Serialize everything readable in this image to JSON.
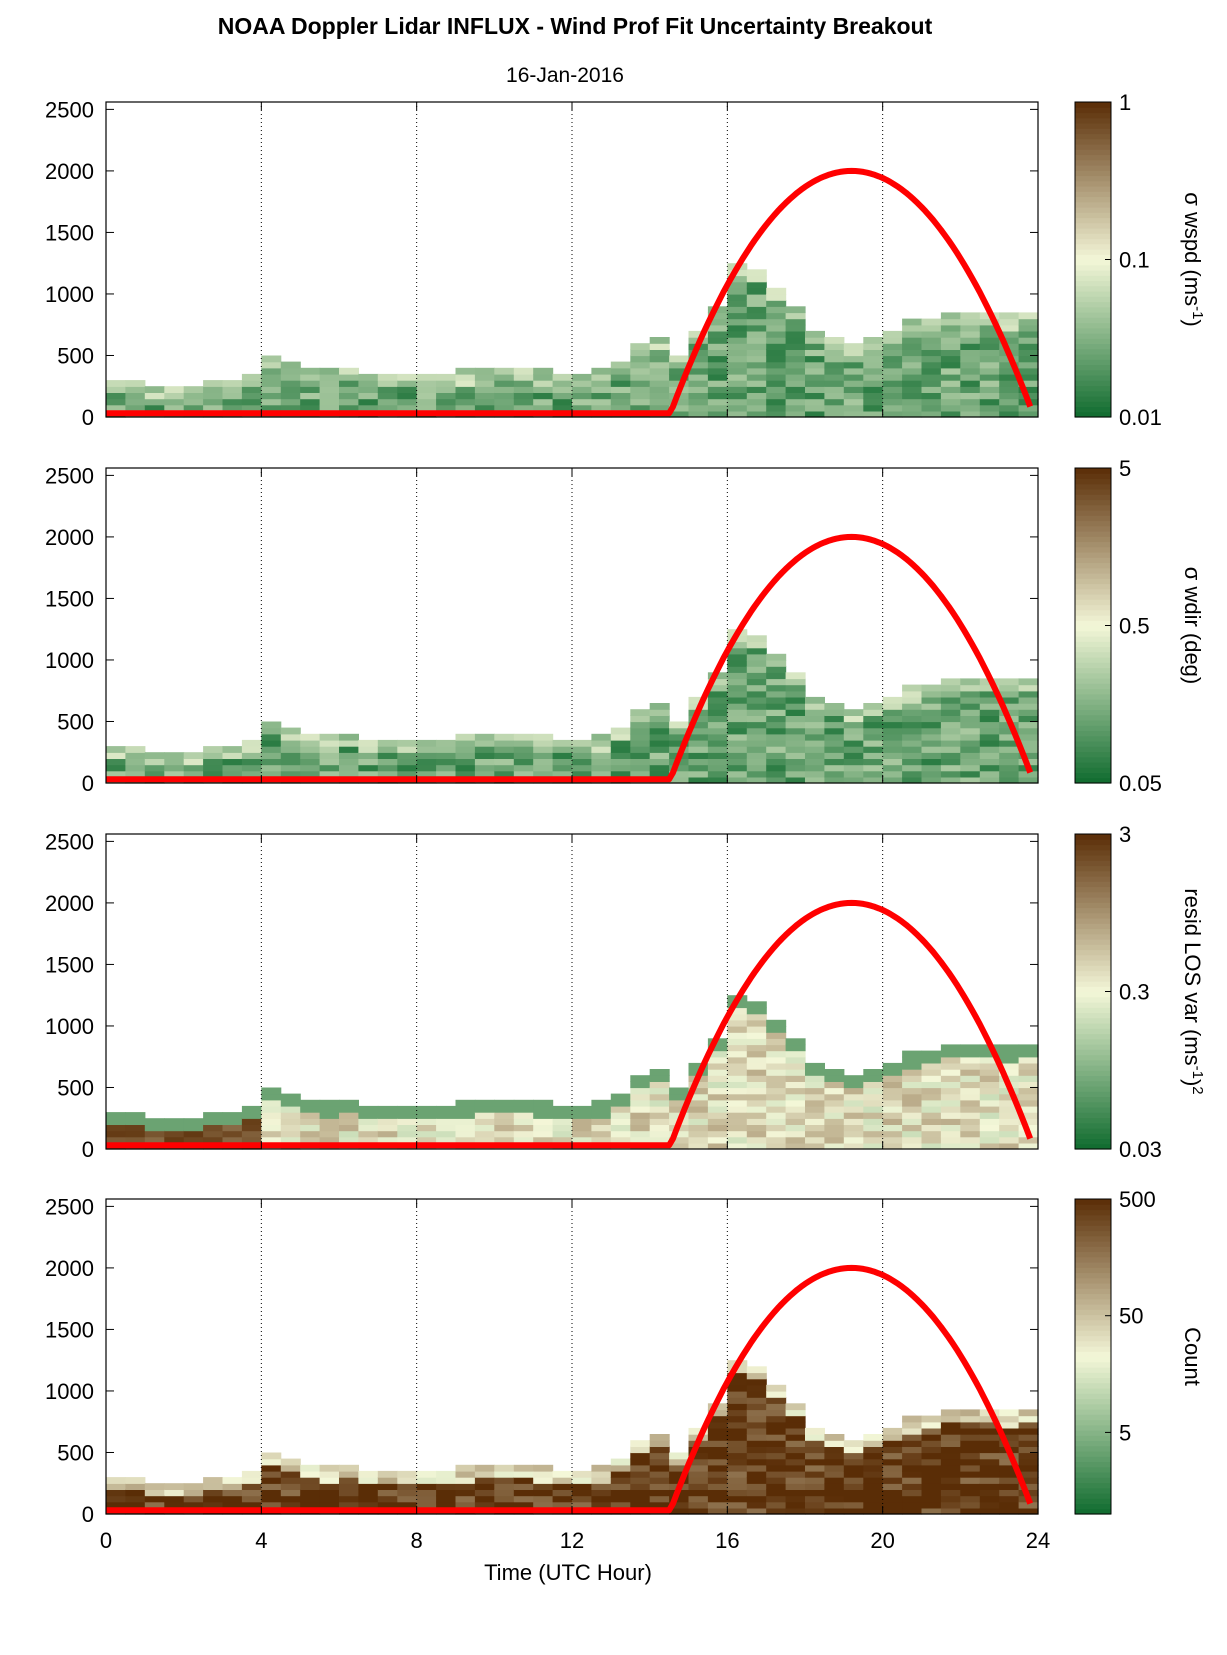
{
  "figure": {
    "title": "NOAA Doppler Lidar INFLUX - Wind Prof Fit Uncertainty Breakout",
    "date": "16-Jan-2016",
    "xlabel": "Time (UTC Hour)"
  },
  "chart_data": [
    {
      "type": "heatmap",
      "panel": "wspd",
      "colorbar_label": "σ wspd (ms",
      "colorbar_label_sup": "-1",
      "colorbar_label_end": ")",
      "colorbar_ticks": [
        "1",
        "0.1",
        "0.01"
      ],
      "colorbar_tick_values": [
        1,
        0.1,
        0.01
      ],
      "clim": [
        0.01,
        1
      ],
      "colormap": "green-white-brown (log)",
      "grid": "vertical dotted",
      "xlim": [
        0,
        24
      ],
      "ylim": [
        0,
        2560
      ],
      "yticks": [
        "2500",
        "2000",
        "1500",
        "1000",
        "500",
        "0"
      ],
      "ytick_values": [
        2500,
        2000,
        1500,
        1000,
        500,
        0
      ],
      "dominant_level": 0.2
    },
    {
      "type": "heatmap",
      "panel": "wdir",
      "colorbar_label": "σ wdir (deg)",
      "colorbar_ticks": [
        "5",
        "0.5",
        "0.05"
      ],
      "colorbar_tick_values": [
        5,
        0.5,
        0.05
      ],
      "clim": [
        0.05,
        5
      ],
      "colormap": "green-white-brown (log)",
      "grid": "vertical dotted",
      "xlim": [
        0,
        24
      ],
      "ylim": [
        0,
        2560
      ],
      "yticks": [
        "2500",
        "2000",
        "1500",
        "1000",
        "500",
        "0"
      ],
      "ytick_values": [
        2500,
        2000,
        1500,
        1000,
        500,
        0
      ],
      "dominant_level": 0.2
    },
    {
      "type": "heatmap",
      "panel": "resid",
      "colorbar_label": "resid LOS var (ms",
      "colorbar_label_sup": "-1",
      "colorbar_label_end": ")",
      "colorbar_label_sup2": "2",
      "colorbar_ticks": [
        "3",
        "0.3",
        "0.03"
      ],
      "colorbar_tick_values": [
        3,
        0.3,
        0.03
      ],
      "clim": [
        0.03,
        3
      ],
      "colormap": "green-white-brown (log)",
      "grid": "vertical dotted",
      "xlim": [
        0,
        24
      ],
      "ylim": [
        0,
        2560
      ],
      "yticks": [
        "2500",
        "2000",
        "1500",
        "1000",
        "500",
        "0"
      ],
      "ytick_values": [
        2500,
        2000,
        1500,
        1000,
        500,
        0
      ],
      "dominant_level": 0.55
    },
    {
      "type": "heatmap",
      "panel": "count",
      "colorbar_label": "Count",
      "colorbar_ticks": [
        "500",
        "50",
        "5"
      ],
      "colorbar_tick_values": [
        500,
        50,
        5
      ],
      "clim": [
        1,
        500
      ],
      "colormap": "green-white-brown (log)",
      "grid": "vertical dotted",
      "xlim": [
        0,
        24
      ],
      "ylim": [
        0,
        2560
      ],
      "yticks": [
        "2500",
        "2000",
        "1500",
        "1000",
        "500",
        "0"
      ],
      "ytick_values": [
        2500,
        2000,
        1500,
        1000,
        500,
        0
      ],
      "xticks": [
        "0",
        "4",
        "8",
        "12",
        "16",
        "20",
        "24"
      ],
      "xtick_values": [
        0,
        4,
        8,
        12,
        16,
        20,
        24
      ],
      "dominant_level": 0.97
    }
  ],
  "data_top_profile": {
    "time_hours": [
      0,
      0.5,
      1,
      1.5,
      2,
      2.5,
      3,
      3.5,
      4,
      4.5,
      5,
      5.5,
      6,
      6.5,
      7,
      7.5,
      8,
      8.5,
      9,
      9.5,
      10,
      10.5,
      11,
      11.5,
      12,
      12.5,
      13,
      13.5,
      14,
      14.5,
      15,
      15.5,
      16,
      16.5,
      17,
      17.5,
      18,
      18.5,
      19,
      19.5,
      20,
      20.5,
      21,
      21.5,
      22,
      22.5,
      23,
      23.5
    ],
    "top_height_m": [
      300,
      280,
      220,
      240,
      250,
      270,
      300,
      350,
      480,
      420,
      380,
      360,
      370,
      350,
      340,
      330,
      320,
      330,
      360,
      380,
      390,
      370,
      360,
      350,
      340,
      360,
      450,
      580,
      650,
      500,
      680,
      900,
      1250,
      1200,
      1050,
      900,
      700,
      650,
      580,
      620,
      700,
      760,
      800,
      820,
      830,
      820,
      810,
      840
    ]
  },
  "sun_elevation_curve": {
    "color": "#ff0000",
    "rise_hour": 14.5,
    "peak_hour": 19.2,
    "peak_height_m": 2000,
    "end_hour": 23.8,
    "end_height_m": 120,
    "baseline_height_m": 30
  },
  "colors": {
    "dark_green": "#0f6b2e",
    "light": "#f4f7d8",
    "dark_brown": "#5a2d06",
    "sun_line": "#ff0000"
  }
}
